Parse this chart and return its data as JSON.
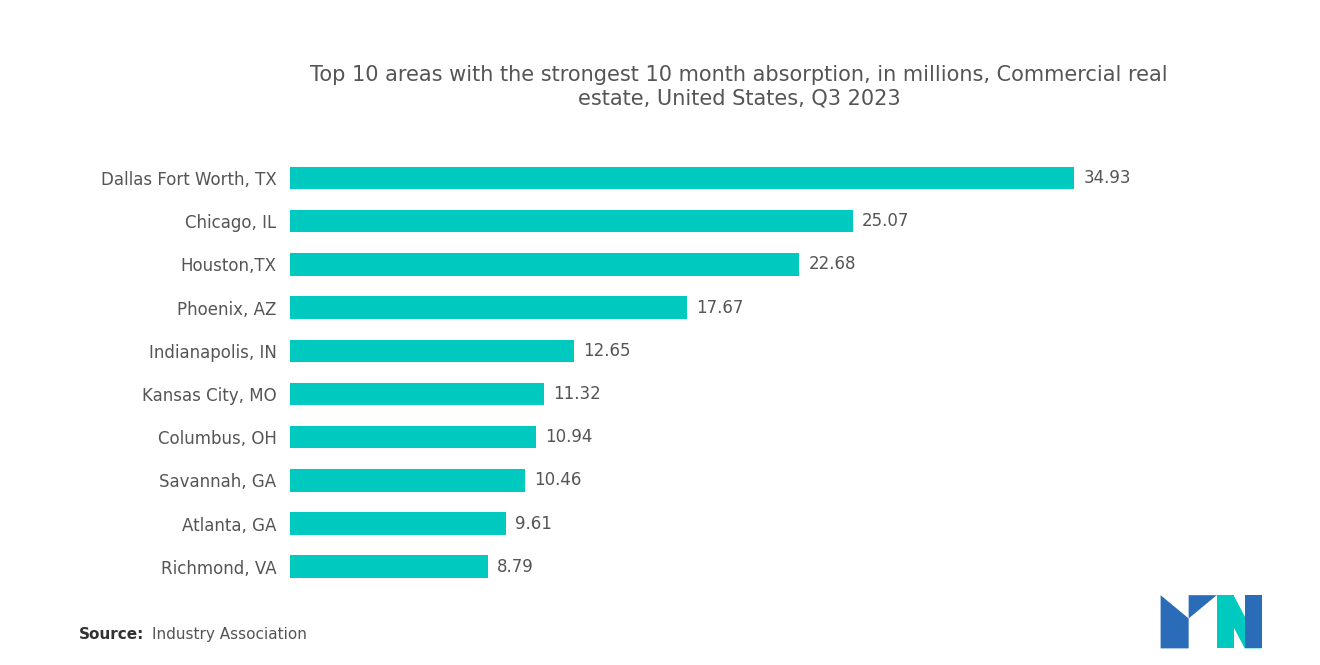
{
  "title": "Top 10 areas with the strongest 10 month absorption, in millions, Commercial real\nestate, United States, Q3 2023",
  "categories": [
    "Dallas Fort Worth, TX",
    "Chicago, IL",
    "Houston,TX",
    "Phoenix, AZ",
    "Indianapolis, IN",
    "Kansas City, MO",
    "Columbus, OH",
    "Savannah, GA",
    "Atlanta, GA",
    "Richmond, VA"
  ],
  "values": [
    34.93,
    25.07,
    22.68,
    17.67,
    12.65,
    11.32,
    10.94,
    10.46,
    9.61,
    8.79
  ],
  "bar_color": "#00C9C0",
  "background_color": "#ffffff",
  "title_color": "#555555",
  "label_color": "#555555",
  "value_color": "#555555",
  "title_fontsize": 15,
  "label_fontsize": 12,
  "value_fontsize": 12,
  "source_fontsize": 11,
  "xlim": [
    0,
    40
  ],
  "bar_height": 0.52
}
